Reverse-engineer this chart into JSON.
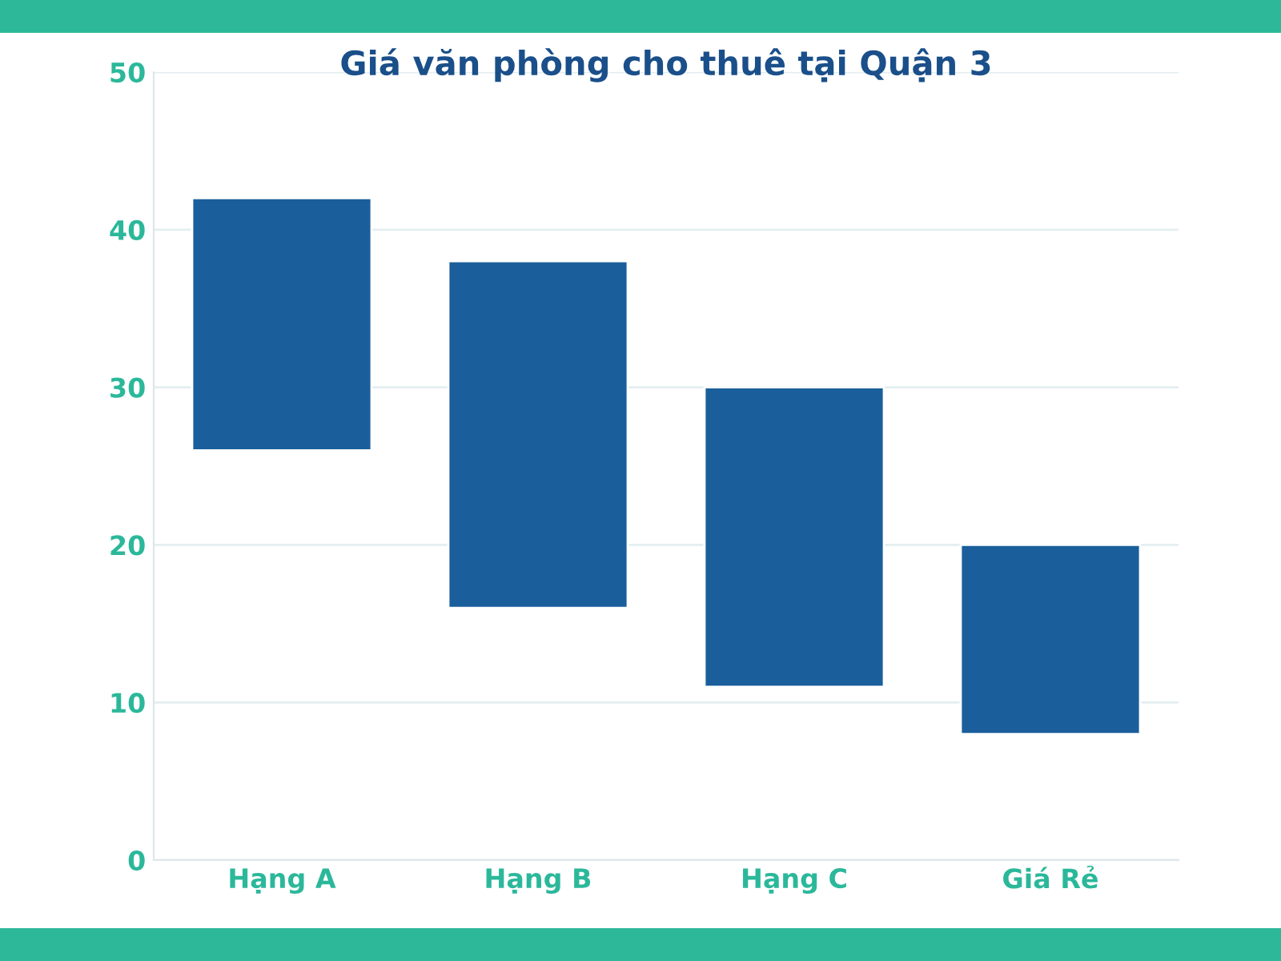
{
  "chart_data": {
    "type": "bar",
    "title": "Giá văn phòng cho thuê tại Quận 3",
    "categories": [
      "Hạng A",
      "Hạng B",
      "Hạng C",
      "Giá Rẻ"
    ],
    "values": [
      16,
      22,
      19,
      12
    ],
    "base": [
      26,
      16,
      11,
      8
    ],
    "color": "#1a5f9c",
    "ylim": [
      0,
      50
    ],
    "yticks": [
      0,
      10,
      20,
      30,
      40,
      50
    ],
    "grid": "y"
  }
}
